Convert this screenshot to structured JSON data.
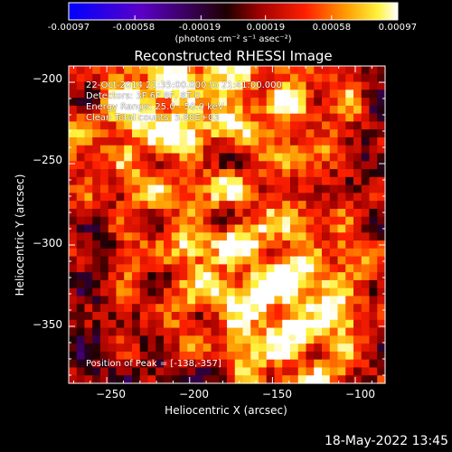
{
  "colorbar": {
    "tick_labels": [
      "-0.00097",
      "-0.00058",
      "-0.00019",
      "0.00019",
      "0.00058",
      "0.00097"
    ],
    "units": "(photons cm⁻² s⁻¹ asec⁻²)",
    "range": [
      -0.00097,
      0.00097
    ],
    "colors": [
      "#0000ff",
      "#5a00c8",
      "#2a0000",
      "#a00000",
      "#ff2000",
      "#ff9a00",
      "#fff23c",
      "#ffffff"
    ]
  },
  "chart_data": {
    "type": "heatmap",
    "title": "Reconstructed RHESSI Image",
    "xlabel": "Heliocentric X (arcsec)",
    "ylabel": "Heliocentric Y (arcsec)",
    "xlim": [
      -273,
      -82
    ],
    "ylim": [
      -385,
      -190
    ],
    "xticks": [
      -250,
      -200,
      -150,
      -100
    ],
    "yticks": [
      -200,
      -250,
      -300,
      -350
    ],
    "xtick_labels": [
      "−250",
      "−200",
      "−150",
      "−100"
    ],
    "ytick_labels": [
      "−200",
      "−250",
      "−300",
      "−350"
    ],
    "info": [
      "22-Oct-2014 21:35:00.000 to 21:41:00.000",
      "Detectors: 3F 6F 8F, 8T 0",
      "Energy Range: 25.0 - 50.0 keV",
      "Clean     Total counts: 5.80E+03"
    ],
    "peak_text": "Position of Peak = [-138,-357]",
    "peak_position": [
      -138,
      -357
    ],
    "sources": [
      {
        "x": -210,
        "y": -200,
        "amp": 1.0
      },
      {
        "x": -135,
        "y": -212,
        "amp": 0.75
      },
      {
        "x": -240,
        "y": -245,
        "amp": 0.55
      },
      {
        "x": -170,
        "y": -298,
        "amp": 0.7
      },
      {
        "x": -138,
        "y": -357,
        "amp": 1.0
      },
      {
        "x": -100,
        "y": -310,
        "amp": 0.45
      },
      {
        "x": -215,
        "y": -330,
        "amp": 0.4
      }
    ]
  },
  "footer": {
    "date": "18-May-2022 13:45"
  }
}
